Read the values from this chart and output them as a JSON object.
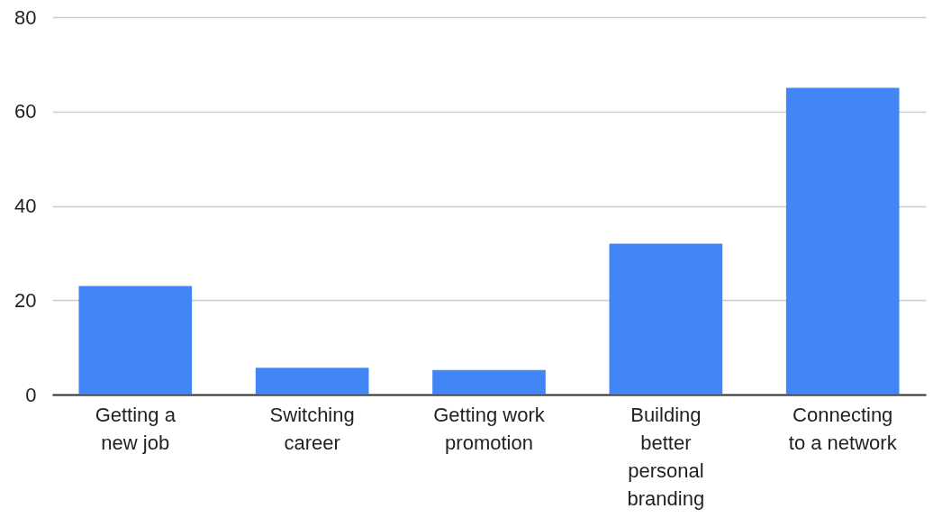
{
  "chart_data": {
    "type": "bar",
    "categories": [
      "Getting a new job",
      "Switching career",
      "Getting work promotion",
      "Building better personal branding",
      "Connecting to a network"
    ],
    "values": [
      23,
      5.7,
      5.2,
      32,
      65
    ],
    "color": "#4285f4",
    "ylim": [
      0,
      80
    ],
    "yticks": [
      0,
      20,
      40,
      60,
      80
    ],
    "grid": "y"
  }
}
